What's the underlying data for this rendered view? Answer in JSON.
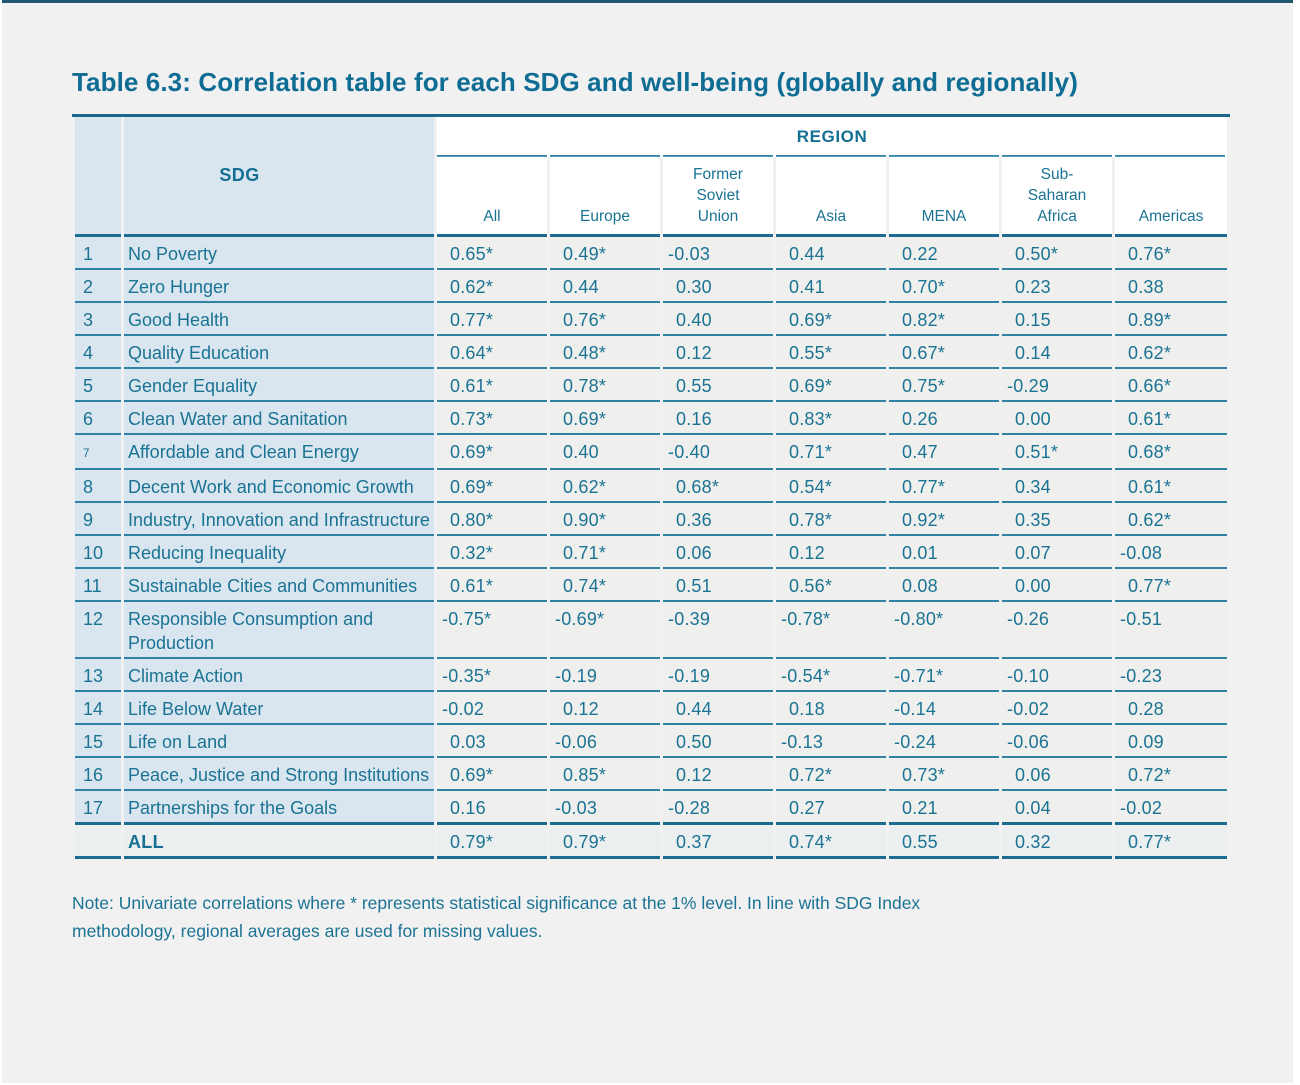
{
  "title": "Table 6.3: Correlation table for each SDG and well-being (globally and regionally)",
  "table": {
    "sdg_header": "SDG",
    "region_header": "REGION",
    "columns": [
      "All",
      "Europe",
      "Former Soviet Union",
      "Asia",
      "MENA",
      "Sub-Saharan Africa",
      "Americas"
    ],
    "rows": [
      {
        "num": "1",
        "name": "No Poverty",
        "values": [
          "0.65*",
          "0.49*",
          "-0.03",
          "0.44",
          "0.22",
          "0.50*",
          "0.76*"
        ]
      },
      {
        "num": "2",
        "name": "Zero Hunger",
        "values": [
          "0.62*",
          "0.44",
          "0.30",
          "0.41",
          "0.70*",
          "0.23",
          "0.38"
        ]
      },
      {
        "num": "3",
        "name": "Good Health",
        "values": [
          "0.77*",
          "0.76*",
          "0.40",
          "0.69*",
          "0.82*",
          "0.15",
          "0.89*"
        ]
      },
      {
        "num": "4",
        "name": "Quality Education",
        "values": [
          "0.64*",
          "0.48*",
          "0.12",
          "0.55*",
          "0.67*",
          "0.14",
          "0.62*"
        ]
      },
      {
        "num": "5",
        "name": "Gender Equality",
        "values": [
          "0.61*",
          "0.78*",
          "0.55",
          "0.69*",
          "0.75*",
          "-0.29",
          "0.66*"
        ]
      },
      {
        "num": "6",
        "name": "Clean Water and Sanitation",
        "values": [
          "0.73*",
          "0.69*",
          "0.16",
          "0.83*",
          "0.26",
          "0.00",
          "0.61*"
        ]
      },
      {
        "num": "7",
        "sup": true,
        "name": "Affordable and Clean Energy",
        "values": [
          "0.69*",
          "0.40",
          "-0.40",
          "0.71*",
          "0.47",
          "0.51*",
          "0.68*"
        ]
      },
      {
        "num": "8",
        "name": "Decent Work and Economic Growth",
        "values": [
          "0.69*",
          "0.62*",
          "0.68*",
          "0.54*",
          "0.77*",
          "0.34",
          "0.61*"
        ]
      },
      {
        "num": "9",
        "name": "Industry, Innovation and Infrastructure",
        "values": [
          "0.80*",
          "0.90*",
          "0.36",
          "0.78*",
          "0.92*",
          "0.35",
          "0.62*"
        ]
      },
      {
        "num": "10",
        "name": "Reducing Inequality",
        "values": [
          "0.32*",
          "0.71*",
          "0.06",
          "0.12",
          "0.01",
          "0.07",
          "-0.08"
        ]
      },
      {
        "num": "11",
        "name": "Sustainable Cities and Communities",
        "values": [
          "0.61*",
          "0.74*",
          "0.51",
          "0.56*",
          "0.08",
          "0.00",
          "0.77*"
        ]
      },
      {
        "num": "12",
        "name": "Responsible Consumption and Production",
        "values": [
          "-0.75*",
          "-0.69*",
          "-0.39",
          "-0.78*",
          "-0.80*",
          "-0.26",
          "-0.51"
        ]
      },
      {
        "num": "13",
        "name": "Climate Action",
        "values": [
          "-0.35*",
          "-0.19",
          "-0.19",
          "-0.54*",
          "-0.71*",
          "-0.10",
          "-0.23"
        ]
      },
      {
        "num": "14",
        "name": "Life Below Water",
        "values": [
          "-0.02",
          "0.12",
          "0.44",
          "0.18",
          "-0.14",
          "-0.02",
          "0.28"
        ]
      },
      {
        "num": "15",
        "name": "Life on Land",
        "values": [
          "0.03",
          "-0.06",
          "0.50",
          "-0.13",
          "-0.24",
          "-0.06",
          "0.09"
        ]
      },
      {
        "num": "16",
        "name": "Peace, Justice and Strong Institutions",
        "values": [
          "0.69*",
          "0.85*",
          "0.12",
          "0.72*",
          "0.73*",
          "0.06",
          "0.72*"
        ]
      },
      {
        "num": "17",
        "name": "Partnerships for the Goals",
        "values": [
          "0.16",
          "-0.03",
          "-0.28",
          "0.27",
          "0.21",
          "0.04",
          "-0.02"
        ]
      },
      {
        "num": "",
        "name": "ALL",
        "total": true,
        "values": [
          "0.79*",
          "0.79*",
          "0.37",
          "0.74*",
          "0.55",
          "0.32",
          "0.77*"
        ]
      }
    ]
  },
  "note": "Note: Univariate correlations where * represents statistical significance at the 1% level. In line with SDG Index\nmethodology, regional averages are used for missing values.",
  "colors": {
    "accent_teal_text": "#1b7393",
    "title_teal": "#0f6c93",
    "rule_thin": "#2f82a3",
    "rule_thick": "#1c6b90",
    "top_bar": "#20576f",
    "sdg_column_bg": "#d9e6f0",
    "value_cell_bg": "#efefee",
    "header_bg": "#ffffff",
    "page_panel_bg": "#f1f1f2"
  }
}
